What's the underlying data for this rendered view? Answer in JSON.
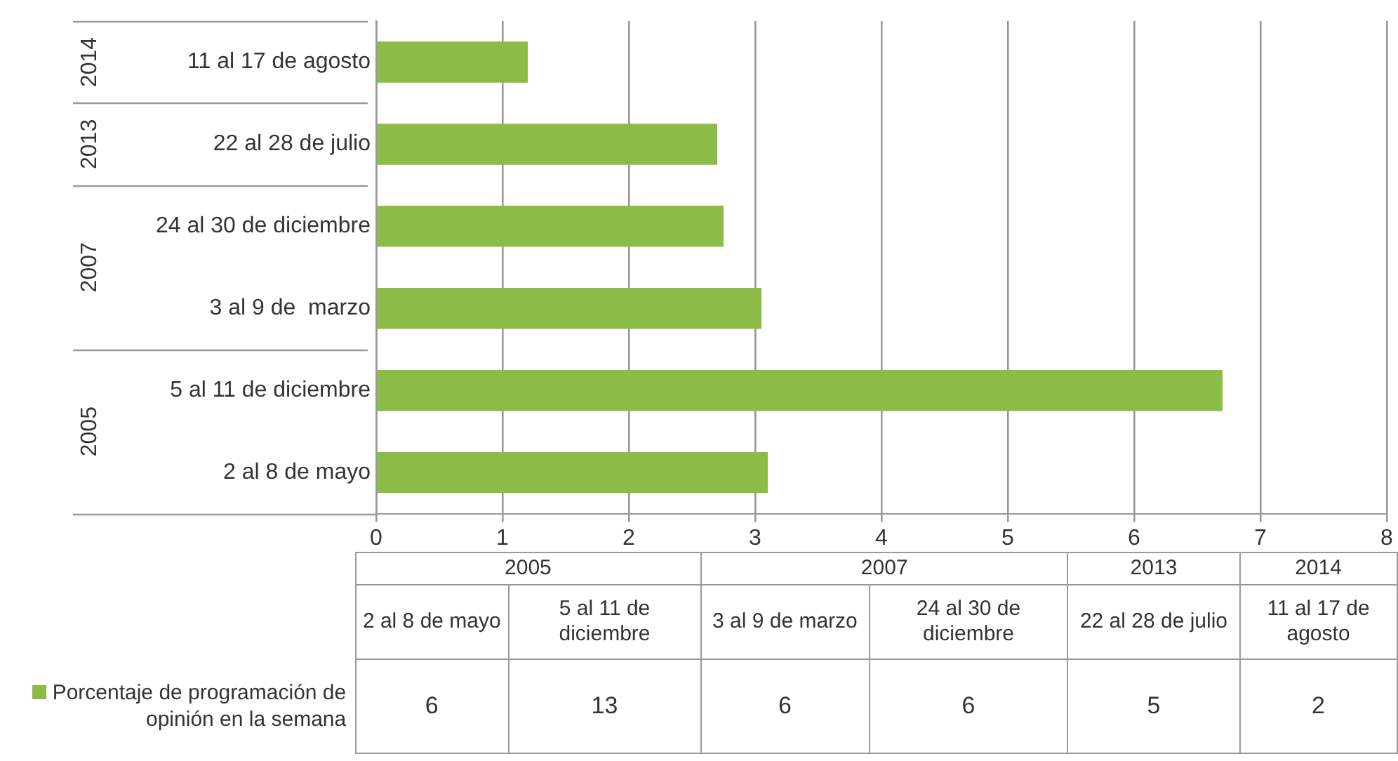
{
  "chart_data": [
    {
      "type": "bar",
      "orientation": "horizontal",
      "categories": [
        "11 al 17 de agosto",
        "22 al 28 de julio",
        "24 al 30 de diciembre",
        "3 al 9 de  marzo",
        "5 al 11 de diciembre",
        "2 al 8 de mayo"
      ],
      "series": [
        {
          "color": "#8cbb48",
          "values": [
            1.2,
            2.7,
            2.75,
            3.05,
            6.7,
            3.1
          ]
        }
      ],
      "xlim": [
        0,
        8
      ],
      "xticks": [
        0,
        1,
        2,
        3,
        4,
        5,
        6,
        7,
        8
      ],
      "grid": "x",
      "annotations": [
        "2014",
        "2013",
        "2007",
        "2005"
      ]
    },
    {
      "type": "other",
      "categories": [
        "2 al 8 de mayo",
        "5 al 11 de diciembre",
        "3 al 9 de marzo",
        "24 al 30 de diciembre",
        "22 al 28 de julio",
        "11 al 17 de agosto"
      ],
      "series": [
        {
          "name": "Porcentaje de programación de opinión en la semana",
          "color": "#8cbb48",
          "values": [
            6,
            13,
            6,
            6,
            5,
            2
          ]
        }
      ],
      "data_labels": true,
      "legend": "left",
      "annotations": [
        "2005",
        "2007",
        "2013",
        "2014"
      ]
    }
  ]
}
